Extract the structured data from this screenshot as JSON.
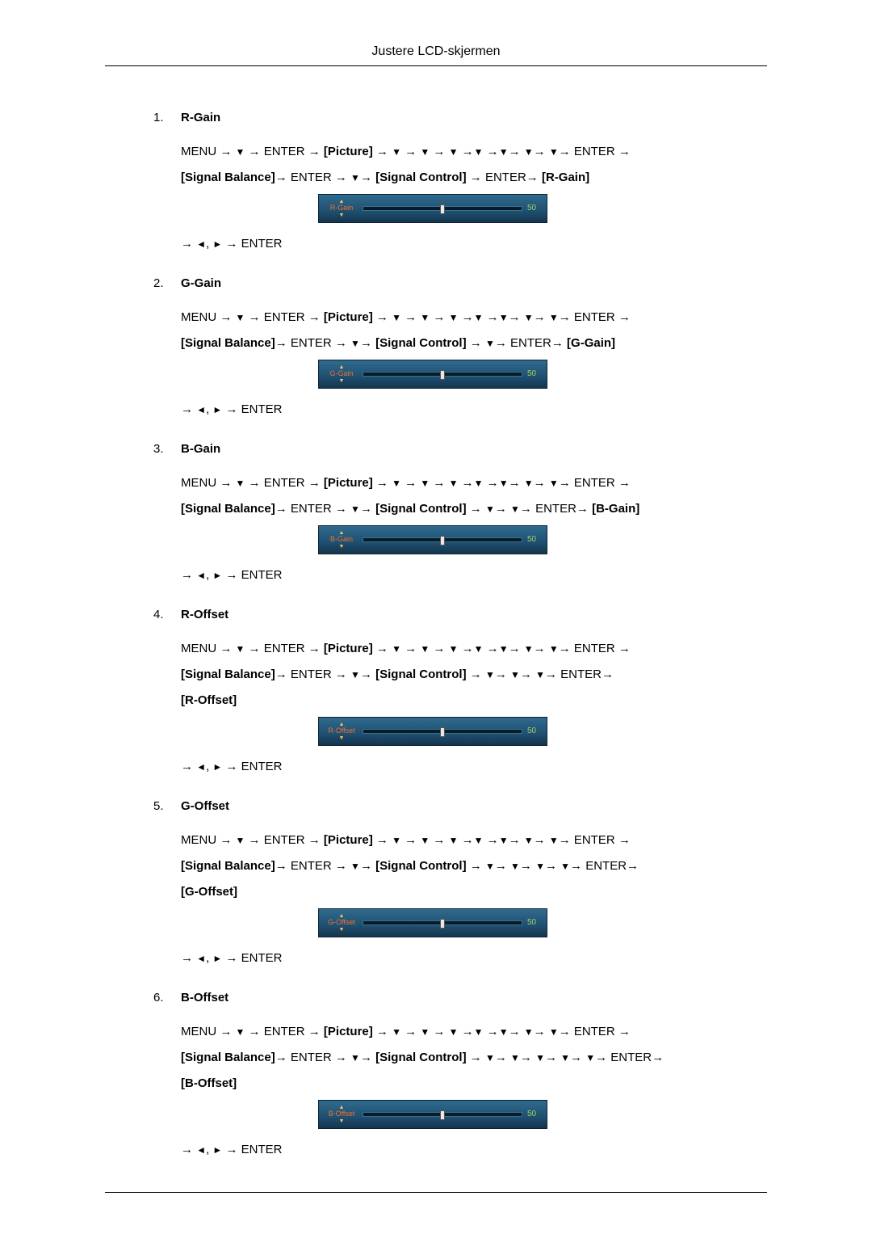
{
  "page": {
    "header_title": "Justere LCD-skjermen"
  },
  "glyphs": {
    "arrow": "→",
    "down": "▼",
    "left": "◄",
    "right": "►",
    "comma": ","
  },
  "labels": {
    "menu": "MENU",
    "enter": "ENTER",
    "picture": "[Picture]",
    "signal_balance": "[Signal Balance]",
    "signal_control": "[Signal Control]"
  },
  "osd_style": {
    "value": 50,
    "thumb_pct": 50
  },
  "items": [
    {
      "num": "1.",
      "title": "R-Gain",
      "osd_label": "R-Gain",
      "final_bracket": "[R-Gain]",
      "down_after_sc": 0,
      "trailing_arrow_line2": false
    },
    {
      "num": "2.",
      "title": "G-Gain",
      "osd_label": "G-Gain",
      "final_bracket": "[G-Gain]",
      "down_after_sc": 1,
      "trailing_arrow_line2": false
    },
    {
      "num": "3.",
      "title": "B-Gain",
      "osd_label": "B-Gain",
      "final_bracket": "[B-Gain]",
      "down_after_sc": 2,
      "trailing_arrow_line2": false
    },
    {
      "num": "4.",
      "title": "R-Offset",
      "osd_label": "R-Offset",
      "final_bracket": "[R-Offset]",
      "down_after_sc": 3,
      "trailing_arrow_line2": false
    },
    {
      "num": "5.",
      "title": "G-Offset",
      "osd_label": "G-Offset",
      "final_bracket": "[G-Offset]",
      "down_after_sc": 4,
      "trailing_arrow_line2": false
    },
    {
      "num": "6.",
      "title": "B-Offset",
      "osd_label": "B-Offset",
      "final_bracket": "[B-Offset]",
      "down_after_sc": 5,
      "trailing_arrow_line2": true
    }
  ],
  "trail_text": "ENTER"
}
